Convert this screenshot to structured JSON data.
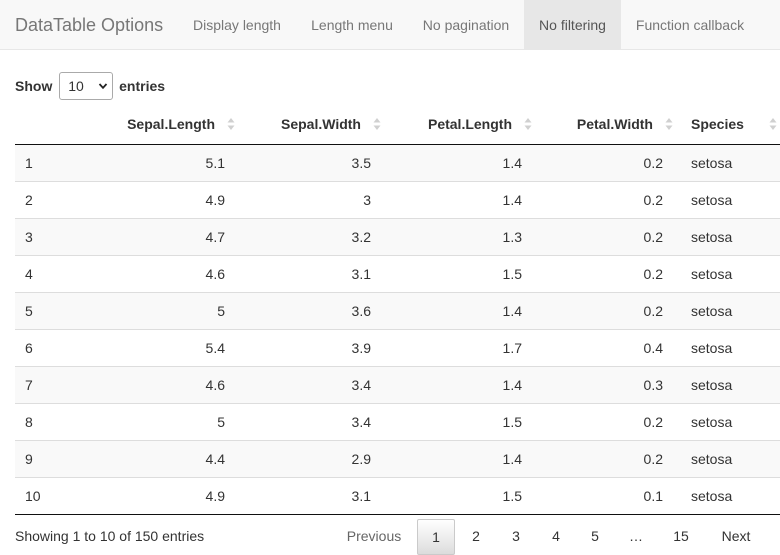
{
  "navbar": {
    "brand": "DataTable Options",
    "tabs": [
      {
        "label": "Display length"
      },
      {
        "label": "Length menu"
      },
      {
        "label": "No pagination"
      },
      {
        "label": "No filtering",
        "active": true
      },
      {
        "label": "Function callback"
      }
    ]
  },
  "length_control": {
    "prefix": "Show",
    "selected": "10",
    "suffix": "entries"
  },
  "table": {
    "columns": [
      "",
      "Sepal.Length",
      "Sepal.Width",
      "Petal.Length",
      "Petal.Width",
      "Species"
    ],
    "rows": [
      [
        "1",
        "5.1",
        "3.5",
        "1.4",
        "0.2",
        "setosa"
      ],
      [
        "2",
        "4.9",
        "3",
        "1.4",
        "0.2",
        "setosa"
      ],
      [
        "3",
        "4.7",
        "3.2",
        "1.3",
        "0.2",
        "setosa"
      ],
      [
        "4",
        "4.6",
        "3.1",
        "1.5",
        "0.2",
        "setosa"
      ],
      [
        "5",
        "5",
        "3.6",
        "1.4",
        "0.2",
        "setosa"
      ],
      [
        "6",
        "5.4",
        "3.9",
        "1.7",
        "0.4",
        "setosa"
      ],
      [
        "7",
        "4.6",
        "3.4",
        "1.4",
        "0.3",
        "setosa"
      ],
      [
        "8",
        "5",
        "3.4",
        "1.5",
        "0.2",
        "setosa"
      ],
      [
        "9",
        "4.4",
        "2.9",
        "1.4",
        "0.2",
        "setosa"
      ],
      [
        "10",
        "4.9",
        "3.1",
        "1.5",
        "0.1",
        "setosa"
      ]
    ]
  },
  "info": "Showing 1 to 10 of 150 entries",
  "pagination": {
    "previous": "Previous",
    "pages": [
      "1",
      "2",
      "3",
      "4",
      "5",
      "…",
      "15"
    ],
    "current": "1",
    "next": "Next"
  },
  "colors": {
    "navbar_bg": "#f8f8f8",
    "active_tab_bg": "#e7e7e7",
    "odd_row_bg": "#f9f9f9",
    "header_border": "#111111"
  },
  "icons": {
    "sort": "sort-both-icon",
    "select": "chevron-down-icon"
  }
}
